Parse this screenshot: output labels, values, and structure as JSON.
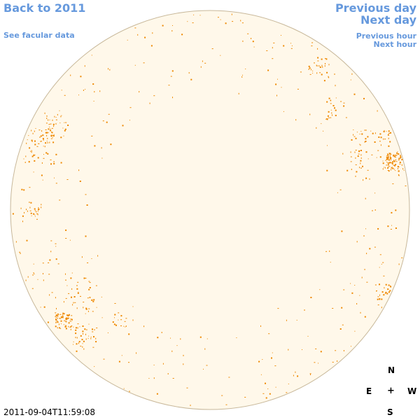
{
  "nav": {
    "back": "Back to 2011",
    "facular": "See facular data",
    "previous_day": "Previous day",
    "next_day": "Next day",
    "previous_hour": "Previous hour",
    "next_hour": "Next hour"
  },
  "timestamp": "2011-09-04T11:59:08",
  "compass": {
    "north": "N",
    "east": "E",
    "center": "+",
    "west": "W",
    "south": "S"
  },
  "colors": {
    "link": "#6699dd",
    "disk_fill": "#fff8ea",
    "disk_outline": "#c8b89a",
    "facula": "#ee8800"
  }
}
